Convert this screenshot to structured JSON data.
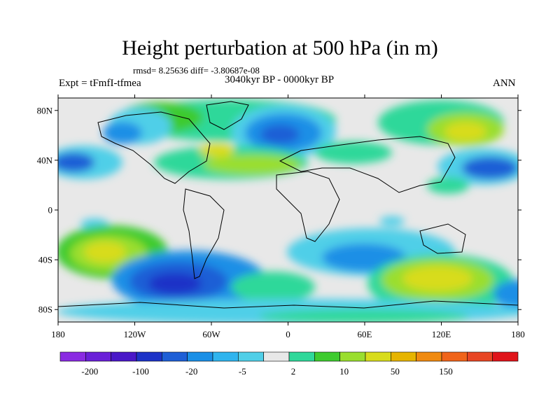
{
  "title": "Height perturbation at 500 hPa (in m)",
  "stats": "rmsd= 8.25636 diff= -3.80687e-08",
  "experiment": "Expt = tFmfI-tfmea",
  "period": "3040kyr BP - 0000kyr BP",
  "season": "ANN",
  "lon_labels": [
    "180",
    "120W",
    "60W",
    "0",
    "60E",
    "120E",
    "180"
  ],
  "lat_labels": [
    "80N",
    "40N",
    "0",
    "40S",
    "80S"
  ],
  "colorbar": {
    "colors": [
      "#8a2be2",
      "#6a20d8",
      "#4a18c8",
      "#1d33c7",
      "#1e5fd6",
      "#1a8fe6",
      "#2fb4ee",
      "#50cfe8",
      "#e8e8e8",
      "#2fd89a",
      "#3ecb2f",
      "#9ade2e",
      "#d8dc1c",
      "#e6b400",
      "#f08a10",
      "#f0641a",
      "#e84624",
      "#e0141a"
    ],
    "labels": [
      "-200",
      "-100",
      "-20",
      "-5",
      "2",
      "10",
      "50",
      "150"
    ]
  },
  "colors": {
    "background_field": "#e8e8e8",
    "coastline": "#000000"
  }
}
